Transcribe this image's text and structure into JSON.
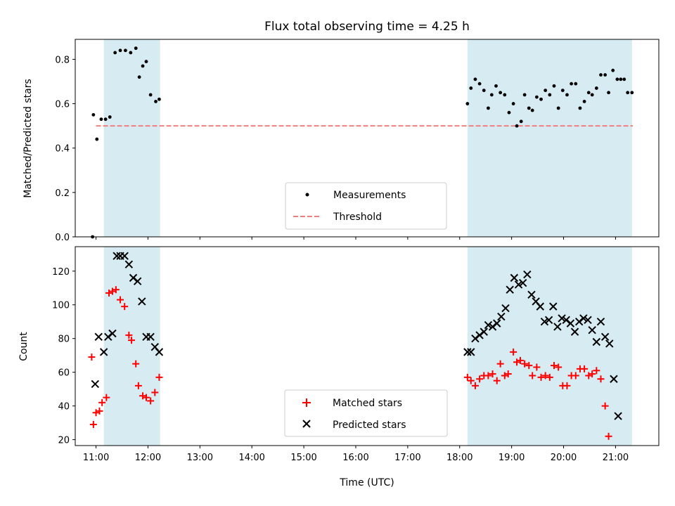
{
  "chart_data": [
    {
      "type": "scatter",
      "title": "Flux total observing time = 4.25 h",
      "xlabel": "",
      "ylabel": "Matched/Predicted stars",
      "xlim": [
        "10:36",
        "21:50"
      ],
      "ylim": [
        0.0,
        0.89
      ],
      "yticks": [
        "0.0",
        "0.2",
        "0.4",
        "0.6",
        "0.8"
      ],
      "yticks_values": [
        0.0,
        0.2,
        0.4,
        0.6,
        0.8
      ],
      "observing_windows": [
        [
          "11:09",
          "12:14"
        ],
        [
          "18:09",
          "21:19"
        ]
      ],
      "threshold": {
        "name": "Threshold",
        "value": 0.5,
        "from": "11:00",
        "to": "21:20",
        "color": "#f08080"
      },
      "legend_position": "lower center",
      "series": [
        {
          "name": "Measurements",
          "marker": "dot",
          "color": "#000000",
          "x": [
            "10:56",
            "10:57",
            "11:01",
            "11:06",
            "11:11",
            "11:16",
            "11:22",
            "11:28",
            "11:34",
            "11:40",
            "11:46",
            "11:50",
            "11:54",
            "11:58",
            "12:03",
            "12:09",
            "12:13",
            "18:09",
            "18:13",
            "18:18",
            "18:23",
            "18:28",
            "18:33",
            "18:37",
            "18:42",
            "18:47",
            "18:52",
            "18:57",
            "19:02",
            "19:06",
            "19:11",
            "19:15",
            "19:20",
            "19:24",
            "19:29",
            "19:34",
            "19:39",
            "19:44",
            "19:49",
            "19:54",
            "19:59",
            "20:04",
            "20:09",
            "20:14",
            "20:19",
            "20:24",
            "20:29",
            "20:33",
            "20:38",
            "20:43",
            "20:48",
            "20:52",
            "20:57",
            "21:02",
            "21:06",
            "21:10",
            "21:14",
            "21:19"
          ],
          "y": [
            0.0,
            0.55,
            0.44,
            0.53,
            0.53,
            0.54,
            0.83,
            0.84,
            0.84,
            0.83,
            0.85,
            0.72,
            0.77,
            0.79,
            0.64,
            0.61,
            0.62,
            0.6,
            0.67,
            0.71,
            0.69,
            0.66,
            0.58,
            0.64,
            0.68,
            0.65,
            0.64,
            0.56,
            0.6,
            0.5,
            0.52,
            0.64,
            0.58,
            0.57,
            0.63,
            0.62,
            0.66,
            0.64,
            0.68,
            0.58,
            0.66,
            0.64,
            0.69,
            0.69,
            0.58,
            0.61,
            0.65,
            0.64,
            0.67,
            0.73,
            0.73,
            0.65,
            0.75,
            0.71,
            0.71,
            0.71,
            0.65,
            0.65
          ]
        }
      ]
    },
    {
      "type": "scatter",
      "title": "",
      "xlabel": "Time (UTC)",
      "ylabel": "Count",
      "xlim": [
        "10:36",
        "21:50"
      ],
      "ylim": [
        16.5,
        134.5
      ],
      "yticks": [
        "20",
        "40",
        "60",
        "80",
        "100",
        "120"
      ],
      "yticks_values": [
        20,
        40,
        60,
        80,
        100,
        120
      ],
      "xticks": [
        "11:00",
        "12:00",
        "13:00",
        "14:00",
        "15:00",
        "16:00",
        "17:00",
        "18:00",
        "19:00",
        "20:00",
        "21:00"
      ],
      "observing_windows": [
        [
          "11:09",
          "12:14"
        ],
        [
          "18:09",
          "21:19"
        ]
      ],
      "legend_position": "lower center",
      "series": [
        {
          "name": "Matched stars",
          "marker": "plus",
          "color": "#ff0000",
          "x": [
            "10:55",
            "10:57",
            "11:00",
            "11:04",
            "11:07",
            "11:12",
            "11:15",
            "11:19",
            "11:23",
            "11:28",
            "11:33",
            "11:38",
            "11:41",
            "11:46",
            "11:49",
            "11:54",
            "11:58",
            "12:03",
            "12:08",
            "12:13",
            "18:09",
            "18:13",
            "18:18",
            "18:23",
            "18:28",
            "18:33",
            "18:38",
            "18:43",
            "18:47",
            "18:52",
            "18:56",
            "19:02",
            "19:06",
            "19:10",
            "19:15",
            "19:20",
            "19:24",
            "19:29",
            "19:34",
            "19:39",
            "19:44",
            "19:49",
            "19:54",
            "19:59",
            "20:04",
            "20:09",
            "20:14",
            "20:19",
            "20:24",
            "20:29",
            "20:33",
            "20:38",
            "20:43",
            "20:48",
            "20:52",
            "20:57",
            "21:02",
            "21:06",
            "21:11",
            "21:15",
            "21:19",
            "21:23"
          ],
          "y": [
            69,
            29,
            36,
            37,
            42,
            45,
            107,
            108,
            109,
            103,
            99,
            82,
            79,
            65,
            52,
            46,
            45,
            43,
            48,
            57,
            57,
            55,
            52,
            56,
            58,
            58,
            59,
            55,
            65,
            58,
            59,
            72,
            66,
            67,
            65,
            64,
            58,
            63,
            57,
            58,
            57,
            64,
            63,
            52,
            52,
            58,
            58,
            62,
            62,
            58,
            59,
            61,
            56,
            40,
            22,
            null,
            null,
            null,
            null,
            null,
            null,
            null
          ]
        },
        {
          "name": "Predicted stars",
          "marker": "x",
          "color": "#000000",
          "x": [
            "10:59",
            "11:03",
            "11:09",
            "11:14",
            "11:19",
            "11:24",
            "11:28",
            "11:33",
            "11:38",
            "11:43",
            "11:48",
            "11:53",
            "11:58",
            "12:03",
            "12:08",
            "12:13",
            "18:09",
            "18:13",
            "18:18",
            "18:23",
            "18:28",
            "18:33",
            "18:38",
            "18:43",
            "18:48",
            "18:53",
            "18:58",
            "19:03",
            "19:08",
            "19:13",
            "19:18",
            "19:23",
            "19:28",
            "19:33",
            "19:38",
            "19:43",
            "19:48",
            "19:53",
            "19:58",
            "20:03",
            "20:08",
            "20:13",
            "20:18",
            "20:23",
            "20:28",
            "20:33",
            "20:38",
            "20:43",
            "20:48",
            "20:53",
            "20:58",
            "21:03",
            "21:08",
            "21:13",
            "21:18",
            "21:23"
          ],
          "y": [
            53,
            81,
            72,
            81,
            83,
            129,
            129,
            129,
            124,
            116,
            114,
            102,
            81,
            81,
            75,
            72,
            72,
            72,
            80,
            82,
            84,
            88,
            87,
            89,
            93,
            98,
            109,
            116,
            112,
            113,
            118,
            106,
            102,
            99,
            90,
            91,
            99,
            87,
            92,
            91,
            89,
            84,
            90,
            92,
            91,
            85,
            78,
            90,
            81,
            77,
            56,
            34,
            null,
            null,
            null,
            null
          ]
        }
      ]
    }
  ]
}
